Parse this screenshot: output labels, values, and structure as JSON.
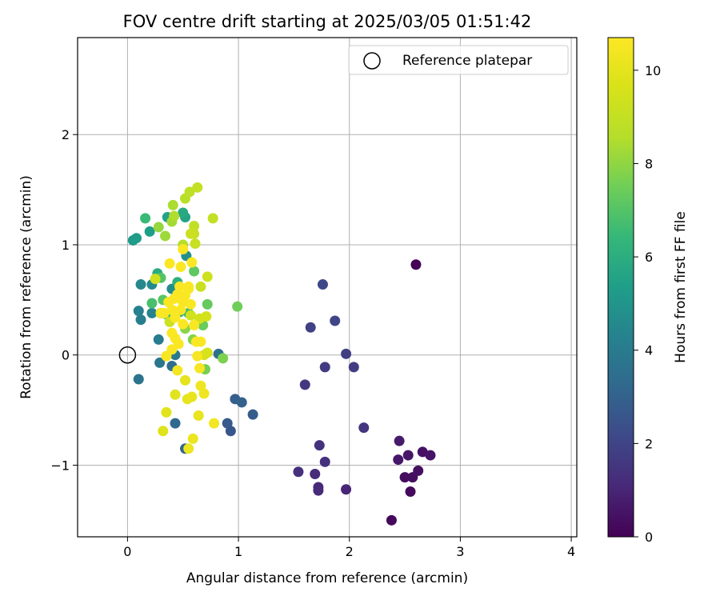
{
  "chart_data": {
    "type": "scatter",
    "title": "FOV centre drift starting at 2025/03/05 01:51:42",
    "xlabel": "Angular distance from reference (arcmin)",
    "ylabel": "Rotation from reference (arcmin)",
    "xlim": [
      -0.45,
      4.05
    ],
    "ylim": [
      -1.65,
      2.88
    ],
    "xticks": [
      0,
      1,
      2,
      3,
      4
    ],
    "xtick_labels": [
      "0",
      "1",
      "2",
      "3",
      "4"
    ],
    "yticks": [
      -1,
      0,
      1,
      2
    ],
    "ytick_labels": [
      "−1",
      "0",
      "1",
      "2"
    ],
    "grid": true,
    "colormap": "viridis",
    "colorbar": {
      "label": "Hours from first FF file",
      "range": [
        0,
        10.7
      ],
      "ticks": [
        0,
        2,
        4,
        6,
        8,
        10
      ],
      "tick_labels": [
        "0",
        "2",
        "4",
        "6",
        "8",
        "10"
      ]
    },
    "legend": {
      "position": "top-right",
      "entries": [
        "Reference platepar"
      ]
    },
    "reference_point": {
      "x": 0,
      "y": 0,
      "label": "Reference platepar"
    },
    "series": [
      {
        "name": "FOV centre",
        "points": [
          [
            2.6,
            0.82,
            0.1
          ],
          [
            2.38,
            -1.5,
            0.2
          ],
          [
            2.55,
            -1.24,
            0.25
          ],
          [
            2.5,
            -1.11,
            0.3
          ],
          [
            2.57,
            -1.11,
            0.35
          ],
          [
            2.62,
            -1.05,
            0.4
          ],
          [
            2.66,
            -0.88,
            0.45
          ],
          [
            2.73,
            -0.91,
            0.5
          ],
          [
            2.53,
            -0.91,
            0.55
          ],
          [
            2.44,
            -0.95,
            0.6
          ],
          [
            2.45,
            -0.78,
            0.7
          ],
          [
            1.97,
            -1.22,
            1.0
          ],
          [
            1.72,
            -1.2,
            1.1
          ],
          [
            1.72,
            -1.23,
            1.15
          ],
          [
            1.69,
            -1.08,
            1.2
          ],
          [
            1.54,
            -1.06,
            1.3
          ],
          [
            1.78,
            -0.97,
            1.35
          ],
          [
            1.73,
            -0.82,
            1.4
          ],
          [
            2.13,
            -0.66,
            1.5
          ],
          [
            1.6,
            -0.27,
            1.6
          ],
          [
            1.78,
            -0.11,
            1.7
          ],
          [
            2.04,
            -0.11,
            1.75
          ],
          [
            1.97,
            0.01,
            1.8
          ],
          [
            1.65,
            0.25,
            1.9
          ],
          [
            1.87,
            0.31,
            2.0
          ],
          [
            1.76,
            0.64,
            2.1
          ],
          [
            0.93,
            -0.69,
            2.6
          ],
          [
            0.9,
            -0.62,
            2.7
          ],
          [
            1.13,
            -0.54,
            2.8
          ],
          [
            0.97,
            -0.4,
            2.9
          ],
          [
            1.03,
            -0.43,
            3.0
          ],
          [
            0.52,
            -0.85,
            3.1
          ],
          [
            0.43,
            -0.62,
            3.3
          ],
          [
            0.4,
            -0.1,
            3.4
          ],
          [
            0.82,
            0.01,
            3.5
          ],
          [
            0.1,
            -0.22,
            3.7
          ],
          [
            0.29,
            -0.07,
            3.8
          ],
          [
            0.43,
            0.0,
            3.9
          ],
          [
            0.28,
            0.14,
            4.0
          ],
          [
            0.12,
            0.32,
            4.1
          ],
          [
            0.1,
            0.4,
            4.2
          ],
          [
            0.22,
            0.38,
            4.3
          ],
          [
            0.3,
            0.38,
            4.4
          ],
          [
            0.12,
            0.64,
            4.5
          ],
          [
            0.22,
            0.64,
            4.6
          ],
          [
            0.4,
            0.6,
            4.7
          ],
          [
            0.53,
            0.9,
            4.8
          ],
          [
            0.05,
            1.04,
            5.2
          ],
          [
            0.08,
            1.06,
            5.3
          ],
          [
            0.2,
            1.12,
            5.4
          ],
          [
            0.36,
            1.25,
            5.5
          ],
          [
            0.52,
            1.25,
            5.6
          ],
          [
            0.5,
            1.29,
            5.8
          ],
          [
            0.27,
            0.74,
            5.9
          ],
          [
            0.45,
            0.66,
            6.1
          ],
          [
            0.47,
            0.39,
            6.2
          ],
          [
            0.35,
            0.37,
            6.3
          ],
          [
            0.55,
            0.38,
            6.4
          ],
          [
            0.16,
            1.24,
            6.5
          ],
          [
            0.22,
            0.47,
            6.8
          ],
          [
            0.3,
            0.7,
            7.0
          ],
          [
            0.32,
            0.5,
            7.1
          ],
          [
            0.6,
            0.76,
            7.2
          ],
          [
            0.72,
            0.46,
            7.3
          ],
          [
            0.68,
            0.27,
            7.4
          ],
          [
            0.99,
            0.44,
            7.5
          ],
          [
            0.7,
            -0.13,
            7.6
          ],
          [
            0.86,
            -0.03,
            7.7
          ],
          [
            0.59,
            0.14,
            7.8
          ],
          [
            0.52,
            0.24,
            7.9
          ],
          [
            0.28,
            1.16,
            8.1
          ],
          [
            0.34,
            1.08,
            8.2
          ],
          [
            0.4,
            1.21,
            8.3
          ],
          [
            0.41,
            1.36,
            8.4
          ],
          [
            0.42,
            1.26,
            8.5
          ],
          [
            0.5,
            1.0,
            8.6
          ],
          [
            0.52,
            1.42,
            8.7
          ],
          [
            0.56,
            1.48,
            8.8
          ],
          [
            0.6,
            1.17,
            8.9
          ],
          [
            0.63,
            1.52,
            9.0
          ],
          [
            0.77,
            1.24,
            9.0
          ],
          [
            0.6,
            1.1,
            9.1
          ],
          [
            0.61,
            1.01,
            9.1
          ],
          [
            0.57,
            1.1,
            9.2
          ],
          [
            0.66,
            0.62,
            9.2
          ],
          [
            0.72,
            0.71,
            9.3
          ],
          [
            0.38,
            0.3,
            9.3
          ],
          [
            0.25,
            0.69,
            9.4
          ],
          [
            0.57,
            0.36,
            9.4
          ],
          [
            0.65,
            0.33,
            9.5
          ],
          [
            0.71,
            0.35,
            9.5
          ],
          [
            0.69,
            0.0,
            9.6
          ],
          [
            0.72,
            0.02,
            9.6
          ],
          [
            0.32,
            -0.69,
            9.8
          ],
          [
            0.35,
            -0.52,
            9.9
          ],
          [
            0.43,
            -0.36,
            9.9
          ],
          [
            0.52,
            -0.23,
            10.0
          ],
          [
            0.54,
            -0.4,
            10.0
          ],
          [
            0.58,
            -0.38,
            10.1
          ],
          [
            0.64,
            -0.55,
            10.1
          ],
          [
            0.59,
            -0.76,
            10.2
          ],
          [
            0.55,
            -0.85,
            10.2
          ],
          [
            0.66,
            -0.28,
            10.3
          ],
          [
            0.69,
            -0.35,
            10.3
          ],
          [
            0.78,
            -0.62,
            10.4
          ],
          [
            0.45,
            -0.14,
            10.4
          ],
          [
            0.65,
            -0.12,
            10.5
          ],
          [
            0.63,
            -0.01,
            10.5
          ],
          [
            0.35,
            -0.01,
            10.5
          ],
          [
            0.3,
            0.38,
            10.6
          ],
          [
            0.33,
            0.38,
            10.6
          ],
          [
            0.37,
            0.48,
            10.6
          ],
          [
            0.4,
            0.41,
            10.6
          ],
          [
            0.42,
            0.51,
            10.6
          ],
          [
            0.45,
            0.55,
            10.6
          ],
          [
            0.48,
            0.41,
            10.6
          ],
          [
            0.5,
            0.48,
            10.6
          ],
          [
            0.52,
            0.54,
            10.6
          ],
          [
            0.55,
            0.6,
            10.6
          ],
          [
            0.57,
            0.46,
            10.6
          ],
          [
            0.4,
            0.2,
            10.6
          ],
          [
            0.43,
            0.15,
            10.6
          ],
          [
            0.46,
            0.1,
            10.6
          ],
          [
            0.5,
            0.28,
            10.6
          ],
          [
            0.6,
            0.27,
            10.6
          ],
          [
            0.62,
            0.12,
            10.6
          ],
          [
            0.66,
            0.12,
            10.6
          ],
          [
            0.4,
            0.05,
            10.6
          ],
          [
            0.43,
            0.34,
            10.6
          ],
          [
            0.48,
            0.8,
            10.6
          ],
          [
            0.5,
            0.96,
            10.6
          ],
          [
            0.38,
            0.83,
            10.6
          ],
          [
            0.58,
            0.84,
            10.6
          ],
          [
            0.47,
            0.62,
            10.6
          ],
          [
            0.55,
            0.62,
            10.6
          ]
        ]
      }
    ]
  }
}
